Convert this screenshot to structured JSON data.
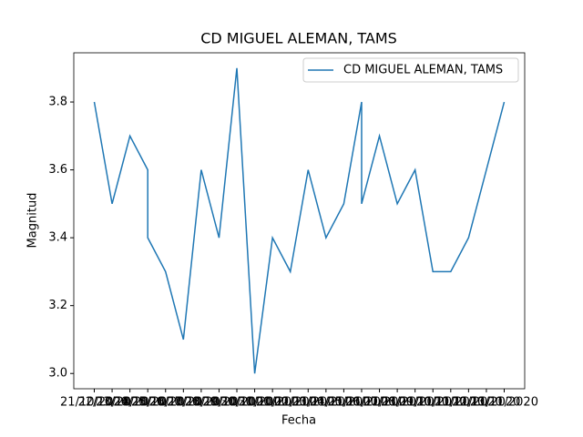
{
  "chart_data": {
    "type": "line",
    "title": "CD MIGUEL ALEMAN, TAMS",
    "xlabel": "Fecha",
    "ylabel": "Magnitud",
    "categories": [
      "21/10/2020",
      "22/10/2020",
      "23/10/2020",
      "24/10/2020",
      "24/10/2020",
      "25/10/2020",
      "26/10/2020",
      "27/10/2020",
      "28/10/2020",
      "29/10/2020",
      "30/10/2020",
      "31/10/2020",
      "01/11/2020",
      "02/11/2020",
      "03/11/2020",
      "04/11/2020",
      "05/11/2020",
      "05/11/2020",
      "06/11/2020",
      "07/11/2020",
      "08/11/2020",
      "09/11/2020",
      "10/11/2020",
      "11/11/2020",
      "12/11/2020",
      "13/11/2020"
    ],
    "series": [
      {
        "name": "CD MIGUEL ALEMAN, TAMS",
        "color": "#1f77b4",
        "values": [
          3.8,
          3.5,
          3.7,
          3.6,
          3.4,
          3.3,
          3.1,
          3.6,
          3.4,
          3.9,
          3.0,
          3.4,
          3.3,
          3.6,
          3.4,
          3.5,
          3.8,
          3.5,
          3.7,
          3.5,
          3.6,
          3.3,
          3.3,
          3.4,
          3.6,
          3.8
        ]
      }
    ],
    "ylim": [
      2.955,
      3.945
    ],
    "yticks": [
      {
        "value": 3.0,
        "label": "3.0"
      },
      3.2,
      3.4,
      3.6,
      3.8
    ],
    "legend": "upper right",
    "grid": false
  }
}
